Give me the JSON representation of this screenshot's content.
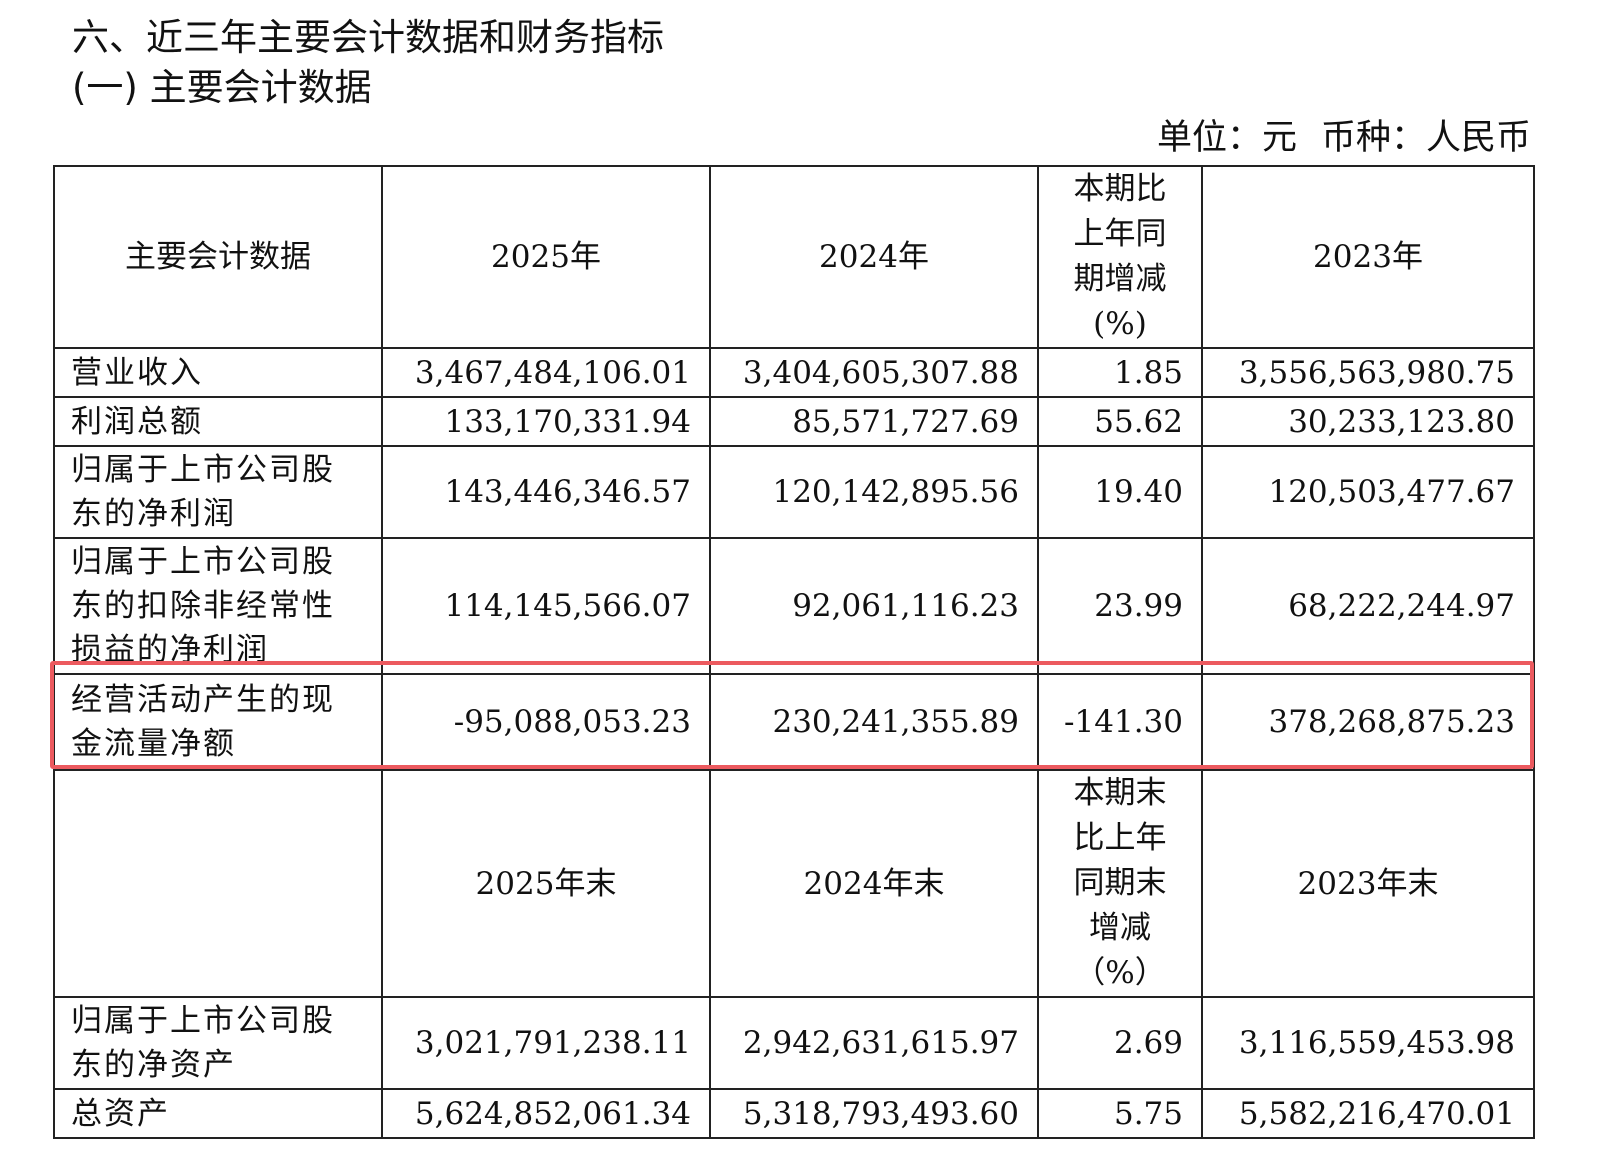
{
  "document": {
    "section_title": "六、近三年主要会计数据和财务指标",
    "sub_title": "(一) 主要会计数据",
    "unit": "单位：元",
    "currency": "币种：人民币"
  },
  "table": {
    "header1": {
      "label": "主要会计数据",
      "y2025": "2025年",
      "y2024": "2024年",
      "change": [
        "本期比",
        "上年同",
        "期增减",
        "(%)"
      ],
      "y2023": "2023年"
    },
    "rows1": [
      {
        "label": "营业收入",
        "v2025": "3,467,484,106.01",
        "v2024": "3,404,605,307.88",
        "change": "1.85",
        "v2023": "3,556,563,980.75"
      },
      {
        "label": "利润总额",
        "v2025": "133,170,331.94",
        "v2024": "85,571,727.69",
        "change": "55.62",
        "v2023": "30,233,123.80"
      },
      {
        "label": "归属于上市公司股东的净利润",
        "v2025": "143,446,346.57",
        "v2024": "120,142,895.56",
        "change": "19.40",
        "v2023": "120,503,477.67"
      },
      {
        "label": "归属于上市公司股东的扣除非经常性损益的净利润",
        "v2025": "114,145,566.07",
        "v2024": "92,061,116.23",
        "change": "23.99",
        "v2023": "68,222,244.97"
      },
      {
        "label": "经营活动产生的现金流量净额",
        "v2025": "-95,088,053.23",
        "v2024": "230,241,355.89",
        "change": "-141.30",
        "v2023": "378,268,875.23"
      }
    ],
    "header2": {
      "label": "",
      "y2025": "2025年末",
      "y2024": "2024年末",
      "change": [
        "本期末",
        "比上年",
        "同期末",
        "增减",
        "（%）"
      ],
      "y2023": "2023年末"
    },
    "rows2": [
      {
        "label": "归属于上市公司股东的净资产",
        "v2025": "3,021,791,238.11",
        "v2024": "2,942,631,615.97",
        "change": "2.69",
        "v2023": "3,116,559,453.98"
      },
      {
        "label": "总资产",
        "v2025": "5,624,852,061.34",
        "v2024": "5,318,793,493.60",
        "change": "5.75",
        "v2023": "5,582,216,470.01"
      }
    ]
  },
  "highlight": {
    "color": "#ec5a5f"
  }
}
